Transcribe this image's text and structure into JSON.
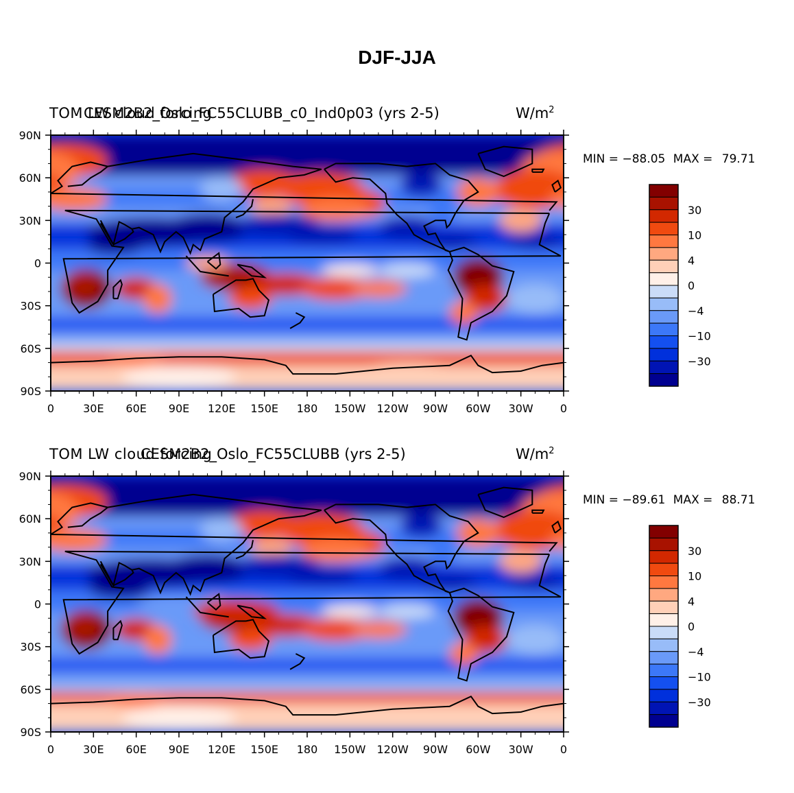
{
  "title": "DJF-JJA",
  "colormap": [
    "#000090",
    "#0014b4",
    "#0030dc",
    "#1450f0",
    "#3c78f8",
    "#6a9af8",
    "#98bcf8",
    "#cadcf8",
    "#fff0e8",
    "#ffd0b8",
    "#ffa880",
    "#ff7840",
    "#f04a10",
    "#d22800",
    "#a81200",
    "#820000"
  ],
  "colorbar_labels": [
    "30",
    "10",
    "4",
    "0",
    "−4",
    "−10",
    "−30"
  ],
  "x_tick_labels": [
    "0",
    "30E",
    "60E",
    "90E",
    "120E",
    "150E",
    "180",
    "150W",
    "120W",
    "90W",
    "60W",
    "30W",
    "0"
  ],
  "y_tick_labels": [
    "90N",
    "60N",
    "30N",
    "0",
    "30S",
    "60S",
    "90S"
  ],
  "panels": [
    {
      "left_string": "TOM LW cloud forcing",
      "center_string": "CESM2B2_Oslo_FC55CLUBB_c0_Ind0p03 (yrs 2-5)",
      "right_string": "W/m",
      "units_superscript": "2",
      "min_label": "MIN =",
      "min_value": "−88.05",
      "max_label": "MAX =",
      "max_value": "79.71"
    },
    {
      "left_string": "TOM LW cloud forcing",
      "center_string": "CESM2B2_Oslo_FC55CLUBB (yrs 2-5)",
      "right_string": "W/m",
      "units_superscript": "2",
      "min_label": "MIN =",
      "min_value": "−89.61",
      "max_label": "MAX =",
      "max_value": "88.71"
    }
  ]
}
